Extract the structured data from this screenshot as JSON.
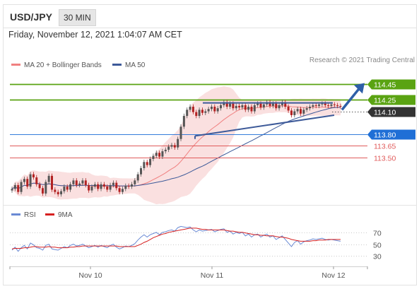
{
  "header": {
    "symbol": "USD/JPY",
    "timeframe": "30 MIN"
  },
  "subtitle": "Friday, November 12, 2021 1:04:07 AM CET",
  "legend_main": [
    {
      "label": "MA 20 + Bollinger Bands",
      "color": "#f08080"
    },
    {
      "label": "MA 50",
      "color": "#3d5a99"
    }
  ],
  "credit": "Research © 2021 Trading Central",
  "colors": {
    "up": "#555555",
    "down": "#b22222",
    "green": "#5aa312",
    "blue": "#1f6fd6",
    "red": "#e05a5a",
    "ma50": "#3d5a99",
    "bb": "#f6c6c6"
  },
  "chart_data": [
    {
      "type": "candlestick",
      "x_labels": [
        "Nov 10",
        "Nov 11",
        "Nov 12"
      ],
      "series": [
        {
          "name": "MA 20 + Bollinger Bands"
        },
        {
          "name": "MA 50"
        }
      ],
      "close": [
        113.09,
        113.14,
        113.05,
        113.18,
        113.22,
        113.12,
        113.28,
        113.24,
        113.15,
        113.1,
        113.03,
        113.18,
        113.26,
        113.08,
        113.05,
        113.02,
        113.06,
        113.12,
        113.08,
        113.15,
        113.2,
        113.14,
        113.16,
        113.2,
        113.14,
        113.07,
        113.12,
        113.15,
        113.09,
        113.15,
        113.12,
        113.08,
        113.14,
        113.17,
        113.1,
        113.05,
        113.09,
        113.13,
        113.12,
        113.15,
        113.2,
        113.28,
        113.36,
        113.44,
        113.4,
        113.48,
        113.52,
        113.56,
        113.51,
        113.58,
        113.6,
        113.64,
        113.66,
        113.63,
        113.74,
        113.9,
        114.04,
        114.12,
        114.16,
        114.09,
        114.04,
        114.12,
        114.08,
        114.1,
        114.13,
        114.16,
        114.1,
        114.14,
        114.18,
        114.22,
        114.16,
        114.2,
        114.14,
        114.17,
        114.15,
        114.18,
        114.12,
        114.16,
        114.1,
        114.18,
        114.2,
        114.15,
        114.19,
        114.22,
        114.17,
        114.2,
        114.14,
        114.18,
        114.22,
        114.16,
        114.11,
        114.05,
        114.1,
        114.13,
        114.07,
        114.12,
        114.14,
        114.16,
        114.18,
        114.17,
        114.19,
        114.2,
        114.18,
        114.17,
        114.19,
        114.18,
        114.17,
        114.16
      ],
      "levels": [
        {
          "value": 114.45,
          "label": "114.45",
          "kind": "resistance"
        },
        {
          "value": 114.25,
          "label": "114.25",
          "kind": "resistance"
        },
        {
          "value": 114.1,
          "label": "114.10",
          "kind": "pivot"
        },
        {
          "value": 113.8,
          "label": "113.80",
          "kind": "support"
        },
        {
          "value": 113.65,
          "label": "113.65",
          "kind": "support"
        },
        {
          "value": 113.5,
          "label": "113.50",
          "kind": "support"
        }
      ],
      "target": 114.45
    },
    {
      "type": "line",
      "series": [
        {
          "name": "RSI",
          "color": "#6a8ad4"
        },
        {
          "name": "9MA",
          "color": "#d62020"
        }
      ],
      "rsi": [
        40,
        45,
        38,
        44,
        48,
        42,
        52,
        49,
        44,
        43,
        40,
        48,
        50,
        42,
        41,
        40,
        43,
        46,
        44,
        48,
        50,
        47,
        48,
        50,
        47,
        44,
        46,
        48,
        45,
        48,
        46,
        44,
        48,
        50,
        45,
        42,
        44,
        47,
        46,
        48,
        51,
        57,
        62,
        66,
        62,
        66,
        68,
        70,
        66,
        70,
        71,
        73,
        74,
        72,
        78,
        80,
        79,
        78,
        79,
        74,
        71,
        74,
        72,
        73,
        74,
        75,
        71,
        73,
        75,
        76,
        70,
        72,
        67,
        70,
        68,
        70,
        64,
        67,
        62,
        66,
        67,
        62,
        65,
        67,
        62,
        64,
        58,
        61,
        64,
        58,
        52,
        46,
        53,
        56,
        50,
        54,
        56,
        57,
        59,
        58,
        59,
        60,
        58,
        57,
        58,
        57,
        56,
        55
      ],
      "ma9": [
        42,
        43,
        43,
        43,
        44,
        44,
        45,
        46,
        46,
        45,
        45,
        45,
        46,
        45,
        45,
        44,
        44,
        44,
        44,
        45,
        45,
        46,
        46,
        47,
        47,
        47,
        47,
        47,
        47,
        47,
        47,
        47,
        47,
        47,
        47,
        46,
        46,
        46,
        46,
        46,
        46,
        48,
        50,
        53,
        55,
        58,
        61,
        63,
        65,
        67,
        68,
        70,
        71,
        72,
        73,
        74,
        75,
        76,
        77,
        77,
        77,
        76,
        75,
        75,
        74,
        74,
        74,
        74,
        74,
        74,
        73,
        72,
        72,
        71,
        70,
        70,
        69,
        68,
        67,
        66,
        66,
        65,
        65,
        64,
        64,
        64,
        63,
        62,
        62,
        61,
        60,
        58,
        57,
        56,
        55,
        55,
        55,
        55,
        56,
        56,
        57,
        57,
        57,
        58,
        58,
        58,
        58,
        58
      ],
      "levels": [
        {
          "value": 70,
          "label": "70"
        },
        {
          "value": 50,
          "label": "50"
        },
        {
          "value": 30,
          "label": "30"
        }
      ]
    }
  ]
}
